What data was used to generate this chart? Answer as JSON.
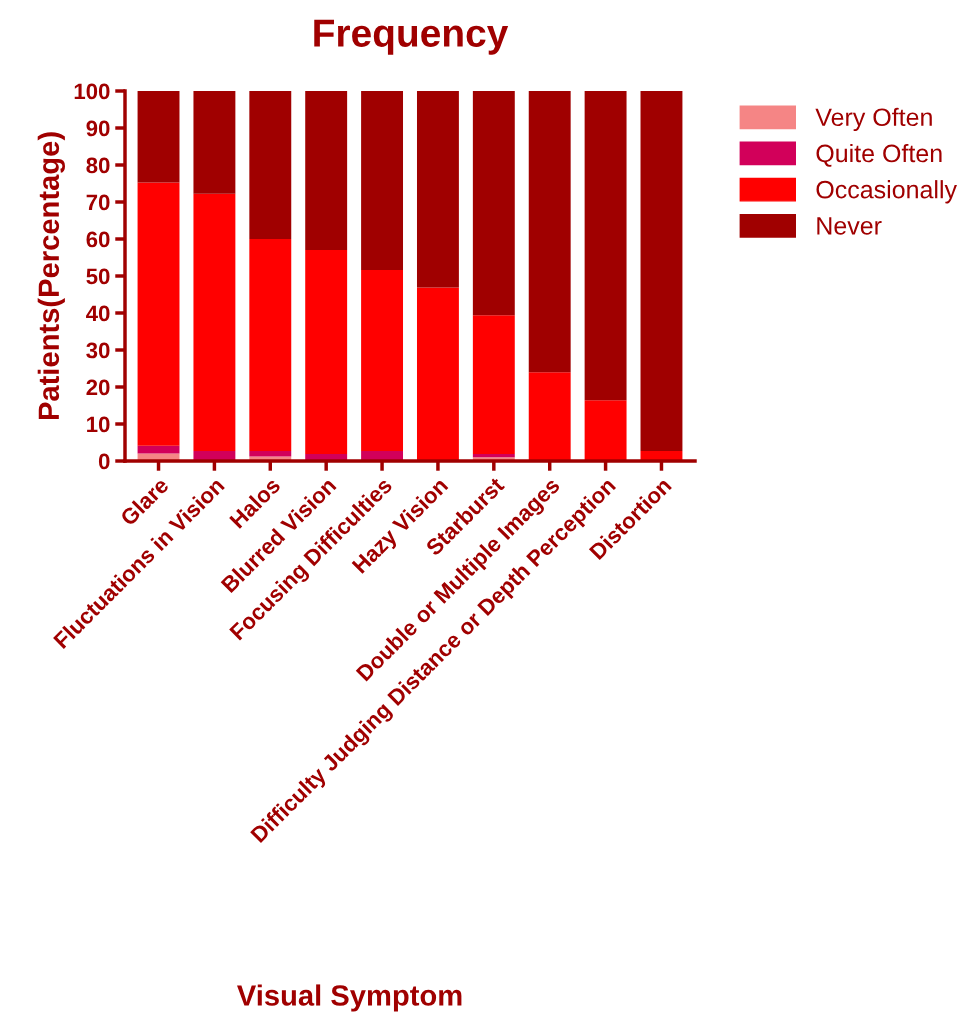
{
  "chart_data": {
    "type": "bar",
    "title": "Frequency",
    "xlabel": "Visual Symptom",
    "ylabel": "Patients(Percentage)",
    "categories": [
      "Glare",
      "Fluctuations in Vision",
      "Halos",
      "Blurred Vision",
      "Focusing Difficulties",
      "Hazy Vision",
      "Starburst",
      "Double or Multiple Images",
      "Difficulty Judging Distance or Depth Perception",
      "Distortion"
    ],
    "stacked": true,
    "series": [
      {
        "name": "Very Often",
        "color": "#f58585",
        "values": [
          2.0,
          0,
          1.2,
          0,
          0,
          0,
          1.0,
          0,
          0,
          0
        ]
      },
      {
        "name": "Quite Often",
        "color": "#d2005a",
        "values": [
          2.1,
          2.7,
          1.5,
          1.9,
          2.7,
          0,
          0.9,
          0,
          0,
          0
        ]
      },
      {
        "name": "Occasionally",
        "color": "#ff0000",
        "values": [
          71.2,
          69.5,
          57.3,
          55.1,
          48.9,
          46.9,
          37.5,
          24.0,
          16.4,
          2.7
        ]
      },
      {
        "name": "Never",
        "color": "#a00000",
        "values": [
          24.7,
          27.8,
          40.0,
          43.0,
          48.4,
          53.1,
          60.6,
          76.0,
          83.6,
          97.3
        ]
      }
    ],
    "ylim": [
      0,
      100
    ],
    "yticks": [
      0,
      10,
      20,
      30,
      40,
      50,
      60,
      70,
      80,
      90,
      100
    ],
    "grid": false,
    "legend": "top right"
  }
}
